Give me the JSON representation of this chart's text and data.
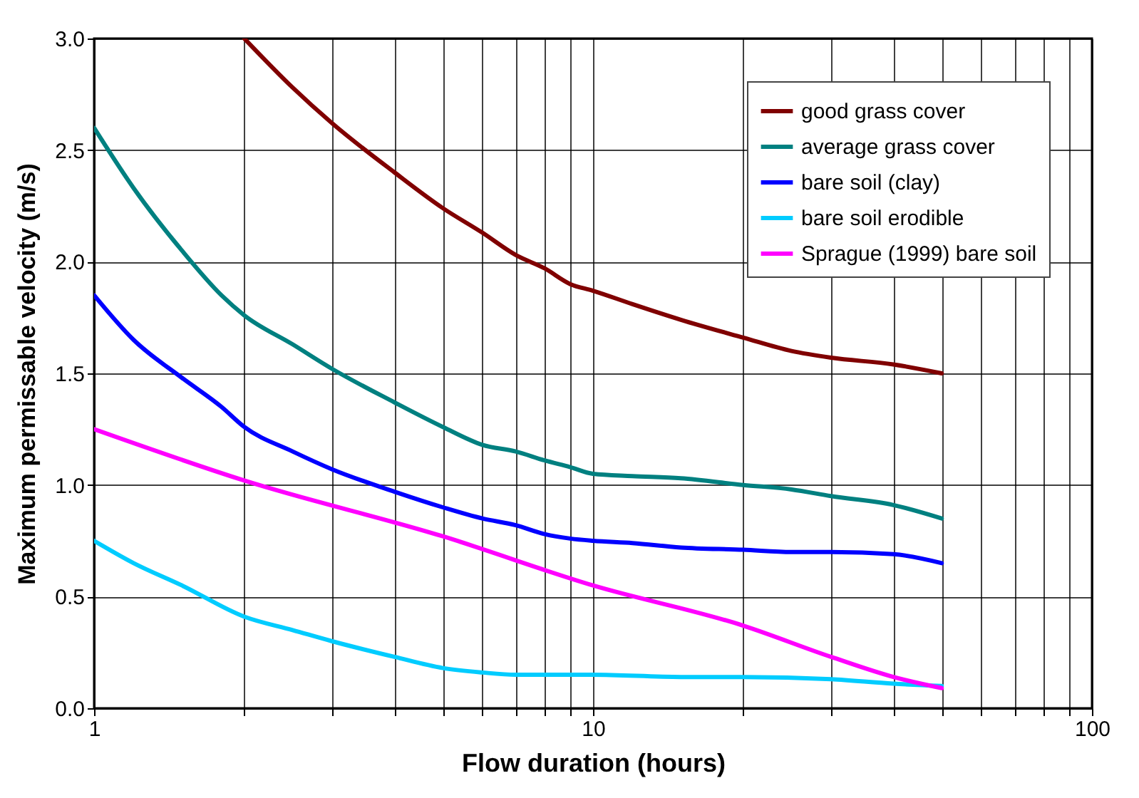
{
  "chart_data": {
    "type": "line",
    "xlabel": "Flow duration (hours)",
    "ylabel": "Maximum permissable velocity (m/s)",
    "log": "x",
    "grid": true,
    "legend": "top right",
    "line_style": "solid",
    "marker": "none",
    "xlim": [
      1,
      100
    ],
    "ylim": [
      0,
      3.0
    ],
    "xticks": [
      1,
      {
        "value": 2,
        "label": null
      },
      {
        "value": 3,
        "label": null
      },
      {
        "value": 4,
        "label": null
      },
      {
        "value": 5,
        "label": null
      },
      {
        "value": 6,
        "label": null
      },
      {
        "value": 7,
        "label": null
      },
      {
        "value": 8,
        "label": null
      },
      {
        "value": 9,
        "label": null
      },
      10,
      {
        "value": 20,
        "label": null
      },
      {
        "value": 30,
        "label": null
      },
      {
        "value": 40,
        "label": null
      },
      {
        "value": 50,
        "label": null
      },
      {
        "value": 60,
        "label": null
      },
      {
        "value": 70,
        "label": null
      },
      {
        "value": 80,
        "label": null
      },
      {
        "value": 90,
        "label": null
      },
      100
    ],
    "yticks": [
      {
        "value": 0,
        "label": "0.0"
      },
      0.5,
      {
        "value": 1,
        "label": "1.0"
      },
      1.5,
      {
        "value": 2,
        "label": "2.0"
      },
      2.5,
      {
        "value": 3,
        "label": "3.0"
      }
    ],
    "series": [
      {
        "name": "good grass cover",
        "color": "#800000",
        "x": [
          2,
          2.5,
          3,
          4,
          5,
          6,
          7,
          8,
          9,
          10,
          12,
          15,
          20,
          25,
          30,
          40,
          50
        ],
        "values": [
          3.0,
          2.78,
          2.62,
          2.4,
          2.24,
          2.13,
          2.03,
          1.97,
          1.9,
          1.87,
          1.81,
          1.74,
          1.66,
          1.6,
          1.57,
          1.54,
          1.5
        ]
      },
      {
        "name": "average grass cover",
        "color": "#008080",
        "x": [
          1,
          1.2,
          1.5,
          1.8,
          2,
          2.5,
          3,
          4,
          5,
          6,
          7,
          8,
          9,
          10,
          12,
          15,
          20,
          25,
          30,
          40,
          50
        ],
        "values": [
          2.6,
          2.33,
          2.05,
          1.85,
          1.76,
          1.63,
          1.52,
          1.37,
          1.26,
          1.18,
          1.15,
          1.11,
          1.08,
          1.05,
          1.04,
          1.03,
          1.0,
          0.98,
          0.95,
          0.91,
          0.85
        ]
      },
      {
        "name": "bare soil (clay)",
        "color": "#0000ff",
        "x": [
          1,
          1.2,
          1.5,
          1.8,
          2,
          2.5,
          3,
          4,
          5,
          6,
          7,
          8,
          9,
          10,
          12,
          15,
          20,
          25,
          30,
          40,
          50
        ],
        "values": [
          1.85,
          1.65,
          1.48,
          1.35,
          1.26,
          1.15,
          1.07,
          0.97,
          0.9,
          0.85,
          0.82,
          0.78,
          0.76,
          0.75,
          0.74,
          0.72,
          0.71,
          0.7,
          0.7,
          0.69,
          0.65
        ]
      },
      {
        "name": "bare soil erodible",
        "color": "#00ccff",
        "x": [
          1,
          1.2,
          1.5,
          2,
          2.5,
          3,
          4,
          5,
          6,
          7,
          10,
          15,
          20,
          30,
          40,
          50
        ],
        "values": [
          0.75,
          0.65,
          0.55,
          0.41,
          0.35,
          0.3,
          0.23,
          0.18,
          0.16,
          0.15,
          0.15,
          0.14,
          0.14,
          0.13,
          0.11,
          0.1
        ]
      },
      {
        "name": "Sprague (1999) bare soil",
        "color": "#ff00ff",
        "x": [
          1,
          2,
          5,
          10,
          20,
          30,
          40,
          50
        ],
        "values": [
          1.25,
          1.02,
          0.77,
          0.55,
          0.37,
          0.23,
          0.14,
          0.09
        ]
      }
    ]
  }
}
